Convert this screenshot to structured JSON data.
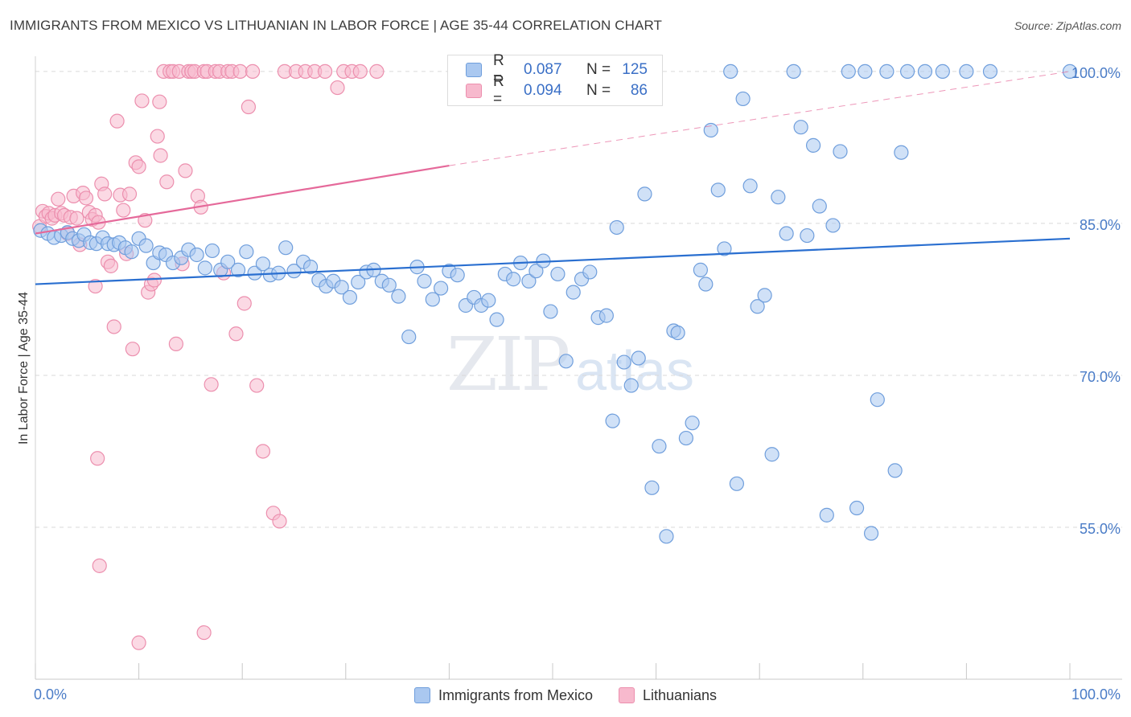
{
  "header": {
    "title": "IMMIGRANTS FROM MEXICO VS LITHUANIAN IN LABOR FORCE | AGE 35-44 CORRELATION CHART",
    "source": "Source: ZipAtlas.com"
  },
  "watermark": {
    "zip": "ZIP",
    "atlas": "atlas"
  },
  "legend": {
    "rows": [
      {
        "r_label": "R =",
        "r_value": "0.087",
        "n_label": "N =",
        "n_value": "125"
      },
      {
        "r_label": "R =",
        "r_value": "0.094",
        "n_label": "N =",
        "n_value": "86"
      }
    ]
  },
  "bottom_legend": {
    "series1": "Immigrants from Mexico",
    "series2": "Lithuanians"
  },
  "colors": {
    "blue_fill": "#aac8f0",
    "blue_stroke": "#6f9edc",
    "blue_line": "#2a6fd0",
    "pink_fill": "#f7b9cd",
    "pink_stroke": "#ec8fae",
    "pink_line": "#e5699a",
    "tick_text": "#4a7cc7",
    "grid": "#d9d9d9"
  },
  "chart_data": {
    "type": "scatter",
    "title": "IMMIGRANTS FROM MEXICO VS LITHUANIAN IN LABOR FORCE | AGE 35-44 CORRELATION CHART",
    "xlabel": "",
    "ylabel": "In Labor Force | Age 35-44",
    "xlim": [
      0,
      100
    ],
    "ylim": [
      40,
      101.5
    ],
    "x_tick_labels": [
      "0.0%",
      "100.0%"
    ],
    "y_ticks": [
      {
        "value": 55,
        "label": "55.0%"
      },
      {
        "value": 70,
        "label": "70.0%"
      },
      {
        "value": 85,
        "label": "85.0%"
      },
      {
        "value": 100,
        "label": "100.0%"
      }
    ],
    "series": [
      {
        "name": "Immigrants from Mexico",
        "color": "blue",
        "R": 0.087,
        "N": 125,
        "trend": {
          "x": [
            0,
            100
          ],
          "y": [
            79.0,
            83.5
          ],
          "dashed_after": null
        },
        "points": [
          [
            0.5,
            84.3
          ],
          [
            1.2,
            84.0
          ],
          [
            1.8,
            83.6
          ],
          [
            2.5,
            83.8
          ],
          [
            3.1,
            84.1
          ],
          [
            3.6,
            83.5
          ],
          [
            4.2,
            83.3
          ],
          [
            4.7,
            83.9
          ],
          [
            5.3,
            83.1
          ],
          [
            5.9,
            83.0
          ],
          [
            6.5,
            83.6
          ],
          [
            7.0,
            83.0
          ],
          [
            7.6,
            82.9
          ],
          [
            8.1,
            83.1
          ],
          [
            8.7,
            82.6
          ],
          [
            9.3,
            82.2
          ],
          [
            10.0,
            83.5
          ],
          [
            10.7,
            82.8
          ],
          [
            11.4,
            81.1
          ],
          [
            12.0,
            82.1
          ],
          [
            12.6,
            81.9
          ],
          [
            13.3,
            81.1
          ],
          [
            14.1,
            81.6
          ],
          [
            14.8,
            82.4
          ],
          [
            15.6,
            81.9
          ],
          [
            16.4,
            80.6
          ],
          [
            17.1,
            82.3
          ],
          [
            17.9,
            80.4
          ],
          [
            18.6,
            81.2
          ],
          [
            19.6,
            80.4
          ],
          [
            20.4,
            82.2
          ],
          [
            21.2,
            80.1
          ],
          [
            22.0,
            81.0
          ],
          [
            22.7,
            79.9
          ],
          [
            23.5,
            80.1
          ],
          [
            24.2,
            82.6
          ],
          [
            25.0,
            80.3
          ],
          [
            25.9,
            81.2
          ],
          [
            26.6,
            80.7
          ],
          [
            27.4,
            79.4
          ],
          [
            28.1,
            78.8
          ],
          [
            28.8,
            79.3
          ],
          [
            29.6,
            78.7
          ],
          [
            30.4,
            77.7
          ],
          [
            31.2,
            79.2
          ],
          [
            32.0,
            80.2
          ],
          [
            32.7,
            80.4
          ],
          [
            33.5,
            79.3
          ],
          [
            34.2,
            78.9
          ],
          [
            35.1,
            77.8
          ],
          [
            36.1,
            73.8
          ],
          [
            36.9,
            80.7
          ],
          [
            37.6,
            79.3
          ],
          [
            38.4,
            77.5
          ],
          [
            39.2,
            78.6
          ],
          [
            40.0,
            80.3
          ],
          [
            40.8,
            79.9
          ],
          [
            41.6,
            76.9
          ],
          [
            42.4,
            77.7
          ],
          [
            43.1,
            76.9
          ],
          [
            43.8,
            77.4
          ],
          [
            44.6,
            75.5
          ],
          [
            45.4,
            80.0
          ],
          [
            46.2,
            79.5
          ],
          [
            46.9,
            81.1
          ],
          [
            47.7,
            79.3
          ],
          [
            48.4,
            80.3
          ],
          [
            49.1,
            81.3
          ],
          [
            49.8,
            76.3
          ],
          [
            50.5,
            80.0
          ],
          [
            51.3,
            71.4
          ],
          [
            52.0,
            78.2
          ],
          [
            52.8,
            79.5
          ],
          [
            53.6,
            80.2
          ],
          [
            54.4,
            75.7
          ],
          [
            55.2,
            75.9
          ],
          [
            55.8,
            65.5
          ],
          [
            56.2,
            84.6
          ],
          [
            56.9,
            71.3
          ],
          [
            57.6,
            69.0
          ],
          [
            58.3,
            71.7
          ],
          [
            58.9,
            87.9
          ],
          [
            59.6,
            58.9
          ],
          [
            60.3,
            63.0
          ],
          [
            61.0,
            54.1
          ],
          [
            61.7,
            74.4
          ],
          [
            62.1,
            74.2
          ],
          [
            62.9,
            63.8
          ],
          [
            63.5,
            65.3
          ],
          [
            64.3,
            80.4
          ],
          [
            64.8,
            79.0
          ],
          [
            65.3,
            94.2
          ],
          [
            66.0,
            88.3
          ],
          [
            66.6,
            82.5
          ],
          [
            67.2,
            100.0
          ],
          [
            67.8,
            59.3
          ],
          [
            68.4,
            97.3
          ],
          [
            69.1,
            88.7
          ],
          [
            69.8,
            76.8
          ],
          [
            70.5,
            77.9
          ],
          [
            71.2,
            62.2
          ],
          [
            71.8,
            87.6
          ],
          [
            72.6,
            84.0
          ],
          [
            73.3,
            100.0
          ],
          [
            74.0,
            94.5
          ],
          [
            74.6,
            83.8
          ],
          [
            75.2,
            92.7
          ],
          [
            75.8,
            86.7
          ],
          [
            76.5,
            56.2
          ],
          [
            77.1,
            84.8
          ],
          [
            77.8,
            92.1
          ],
          [
            78.6,
            100.0
          ],
          [
            79.4,
            56.9
          ],
          [
            80.2,
            100.0
          ],
          [
            80.8,
            54.4
          ],
          [
            81.4,
            67.6
          ],
          [
            82.3,
            100.0
          ],
          [
            83.1,
            60.6
          ],
          [
            83.7,
            92.0
          ],
          [
            84.3,
            100.0
          ],
          [
            86.0,
            100.0
          ],
          [
            87.7,
            100.0
          ],
          [
            90.0,
            100.0
          ],
          [
            92.3,
            100.0
          ],
          [
            100.0,
            100.0
          ]
        ]
      },
      {
        "name": "Lithuanians",
        "color": "pink",
        "R": 0.094,
        "N": 86,
        "trend": {
          "x": [
            0,
            40,
            100
          ],
          "y": [
            84.0,
            90.7,
            100.0
          ],
          "dashed_after": 40
        },
        "points": [
          [
            0.4,
            84.7
          ],
          [
            0.7,
            86.2
          ],
          [
            1.0,
            85.7
          ],
          [
            1.3,
            86.0
          ],
          [
            1.6,
            85.5
          ],
          [
            1.9,
            85.8
          ],
          [
            2.2,
            87.4
          ],
          [
            2.5,
            86.0
          ],
          [
            2.8,
            85.8
          ],
          [
            3.1,
            84.0
          ],
          [
            3.4,
            85.6
          ],
          [
            3.7,
            87.7
          ],
          [
            4.0,
            85.5
          ],
          [
            4.3,
            82.9
          ],
          [
            4.6,
            88.0
          ],
          [
            4.9,
            87.5
          ],
          [
            5.2,
            86.1
          ],
          [
            5.5,
            85.4
          ],
          [
            5.8,
            85.8
          ],
          [
            6.1,
            85.1
          ],
          [
            6.4,
            88.9
          ],
          [
            6.7,
            87.9
          ],
          [
            7.0,
            81.2
          ],
          [
            7.3,
            80.8
          ],
          [
            7.6,
            74.8
          ],
          [
            7.9,
            95.1
          ],
          [
            8.2,
            87.8
          ],
          [
            8.5,
            86.3
          ],
          [
            8.8,
            82.0
          ],
          [
            9.1,
            87.9
          ],
          [
            9.4,
            72.6
          ],
          [
            9.7,
            91.0
          ],
          [
            10.0,
            90.6
          ],
          [
            10.3,
            97.1
          ],
          [
            10.6,
            85.3
          ],
          [
            10.9,
            78.2
          ],
          [
            11.2,
            79.0
          ],
          [
            11.5,
            79.4
          ],
          [
            11.8,
            93.6
          ],
          [
            12.1,
            91.7
          ],
          [
            12.4,
            100.0
          ],
          [
            12.7,
            89.1
          ],
          [
            13.0,
            100.0
          ],
          [
            13.3,
            100.0
          ],
          [
            13.6,
            73.1
          ],
          [
            13.9,
            100.0
          ],
          [
            14.2,
            81.0
          ],
          [
            14.5,
            90.2
          ],
          [
            14.8,
            100.0
          ],
          [
            15.1,
            100.0
          ],
          [
            15.4,
            100.0
          ],
          [
            15.7,
            87.7
          ],
          [
            16.0,
            86.6
          ],
          [
            16.3,
            100.0
          ],
          [
            16.6,
            100.0
          ],
          [
            17.0,
            69.1
          ],
          [
            17.4,
            100.0
          ],
          [
            17.8,
            100.0
          ],
          [
            18.2,
            80.1
          ],
          [
            18.6,
            100.0
          ],
          [
            19.0,
            100.0
          ],
          [
            19.4,
            74.1
          ],
          [
            19.8,
            100.0
          ],
          [
            20.2,
            77.1
          ],
          [
            20.6,
            96.5
          ],
          [
            21.0,
            100.0
          ],
          [
            21.4,
            69.0
          ],
          [
            22.0,
            62.5
          ],
          [
            23.0,
            56.4
          ],
          [
            23.6,
            55.6
          ],
          [
            24.1,
            100.0
          ],
          [
            25.2,
            100.0
          ],
          [
            26.1,
            100.0
          ],
          [
            27.0,
            100.0
          ],
          [
            28.0,
            100.0
          ],
          [
            29.2,
            98.4
          ],
          [
            29.8,
            100.0
          ],
          [
            30.6,
            100.0
          ],
          [
            31.4,
            100.0
          ],
          [
            33.0,
            100.0
          ],
          [
            5.8,
            78.8
          ],
          [
            6.0,
            61.8
          ],
          [
            6.2,
            51.2
          ],
          [
            10.0,
            43.6
          ],
          [
            16.3,
            44.6
          ],
          [
            12.0,
            97.0
          ]
        ]
      }
    ]
  }
}
